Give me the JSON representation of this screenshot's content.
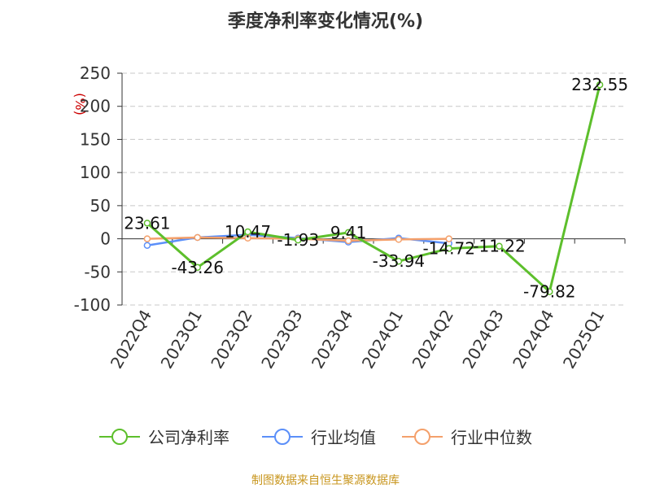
{
  "chart_data": {
    "type": "line",
    "title": "季度净利率变化情况(%)",
    "ylabel": "(%)",
    "ylim": [
      -100,
      250
    ],
    "yticks": [
      250,
      200,
      150,
      100,
      50,
      0,
      -50,
      -100
    ],
    "categories": [
      "2022Q4",
      "2023Q1",
      "2023Q2",
      "2023Q3",
      "2023Q4",
      "2024Q1",
      "2024Q2",
      "2024Q3",
      "2024Q4",
      "2025Q1"
    ],
    "series": [
      {
        "name": "公司净利率",
        "color": "#5dbf2c",
        "values": [
          23.61,
          -43.26,
          10.47,
          -1.93,
          9.41,
          -33.94,
          -14.72,
          -11.22,
          -79.82,
          232.55
        ],
        "labels": [
          "23.61",
          "-43.26",
          "10.47",
          "-1.93",
          "9.41",
          "-33.94",
          "-14.72",
          "-11.22",
          "-79.82",
          "232.55"
        ]
      },
      {
        "name": "行业均值",
        "color": "#5b8ff9",
        "values": [
          -10,
          2,
          6,
          1,
          -5,
          1,
          -7,
          null,
          null,
          null
        ]
      },
      {
        "name": "行业中位数",
        "color": "#f4a06b",
        "values": [
          0,
          2,
          1,
          0,
          -3,
          -1,
          0,
          null,
          null,
          null
        ]
      }
    ],
    "grid": true,
    "legend_position": "bottom"
  },
  "source": "制图数据来自恒生聚源数据库"
}
